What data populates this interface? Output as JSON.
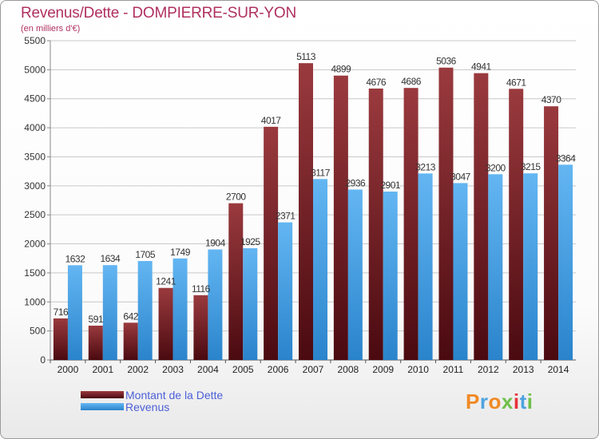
{
  "header": {
    "title": "Revenus/Dette - DOMPIERRE-SUR-YON",
    "subtitle": "(en milliers d'€)"
  },
  "brand": {
    "text": "Proxiti",
    "colors": [
      "#f08a24",
      "#4da3e0",
      "#f08a24",
      "#6fc04a",
      "#e8303a",
      "#4da3e0",
      "#6fc04a"
    ]
  },
  "chart_data": {
    "type": "bar",
    "categories": [
      "2000",
      "2001",
      "2002",
      "2003",
      "2004",
      "2005",
      "2006",
      "2007",
      "2008",
      "2009",
      "2010",
      "2011",
      "2012",
      "2013",
      "2014"
    ],
    "series": [
      {
        "name": "Montant de la Dette",
        "color": "#7a1e24",
        "values": [
          716,
          591,
          642,
          1241,
          1116,
          2700,
          4017,
          5113,
          4899,
          4676,
          4686,
          5036,
          4941,
          4671,
          4370
        ]
      },
      {
        "name": "Revenus",
        "color": "#4aa3e8",
        "values": [
          1632,
          1634,
          1705,
          1749,
          1904,
          1925,
          2371,
          3117,
          2936,
          2901,
          3213,
          3047,
          3200,
          3215,
          3364
        ]
      }
    ],
    "y_ticks": [
      0,
      500,
      1000,
      1500,
      2000,
      2500,
      3000,
      3500,
      4000,
      4500,
      5000,
      5500
    ],
    "ylim": [
      0,
      5500
    ],
    "grid": true,
    "legend_position": "bottom-left"
  }
}
